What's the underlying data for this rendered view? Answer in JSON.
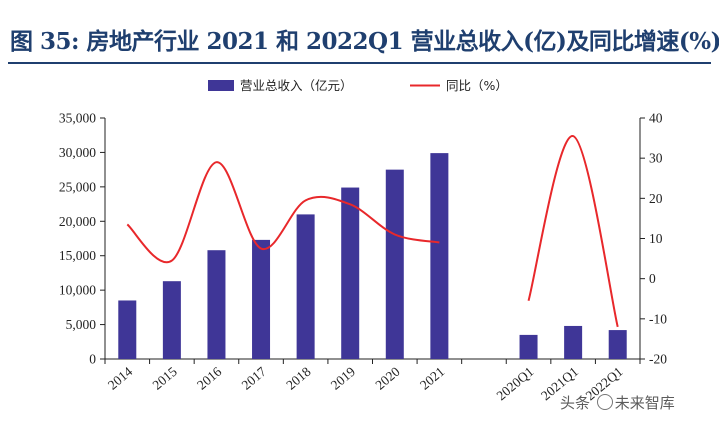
{
  "title": "图 35:  房地产行业 2021 和 2022Q1 营业总收入(亿)及同比增速(%)",
  "watermark": {
    "prefix": "头条",
    "brand": "未来智库"
  },
  "chart_data": {
    "type": "bar+line",
    "categories": [
      "2014",
      "2015",
      "2016",
      "2017",
      "2018",
      "2019",
      "2020",
      "2021",
      "",
      "2020Q1",
      "2021Q1",
      "2022Q1"
    ],
    "series": [
      {
        "name": "营业总收入（亿元）",
        "type": "bar",
        "axis": "left",
        "color": "#3f3697",
        "values": [
          8500,
          11300,
          15800,
          17300,
          21000,
          24900,
          27500,
          29900,
          null,
          3500,
          4800,
          4200
        ]
      },
      {
        "name": "同比（%）",
        "type": "line",
        "axis": "right",
        "color": "#e8282b",
        "smooth": true,
        "values": [
          13.5,
          4.5,
          29,
          7.5,
          19.5,
          18.5,
          11,
          9,
          null,
          -5.5,
          35.5,
          -12
        ]
      }
    ],
    "yleft": {
      "min": 0,
      "max": 35000,
      "ticks": [
        0,
        5000,
        10000,
        15000,
        20000,
        25000,
        30000,
        35000
      ],
      "tick_labels": [
        "0",
        "5,000",
        "10,000",
        "15,000",
        "20,000",
        "25,000",
        "30,000",
        "35,000"
      ]
    },
    "yright": {
      "min": -20,
      "max": 40,
      "ticks": [
        -20,
        -10,
        0,
        10,
        20,
        30,
        40
      ],
      "tick_labels": [
        "-20",
        "-10",
        "0",
        "10",
        "20",
        "30",
        "40"
      ]
    },
    "xlabel": "",
    "ylabel": "",
    "grid": false,
    "legend_position": "top"
  }
}
